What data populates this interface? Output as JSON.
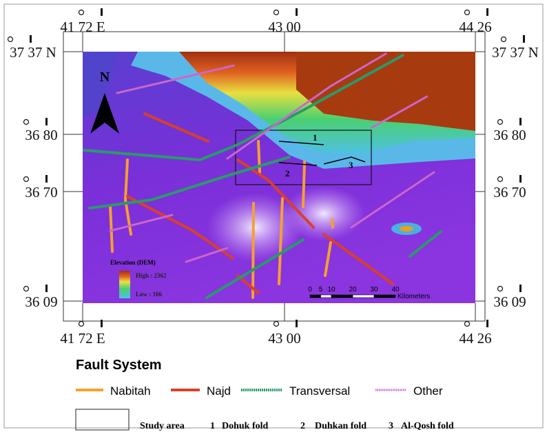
{
  "map": {
    "top_labels": [
      "41 72 E",
      "43 00",
      "44 26"
    ],
    "bottom_labels": [
      "41 72 E",
      "43 00",
      "44 26"
    ],
    "left_labels": [
      "37 37 N",
      "36 80",
      "36 70",
      "36 09"
    ],
    "right_labels": [
      "37 37 N",
      "36 80",
      "36 70",
      "36 09"
    ],
    "north": "N",
    "dem_legend": {
      "title": "Elevation (DEM)",
      "high": "High : 2362",
      "low": "Low : 166"
    },
    "scale": {
      "ticks": [
        0,
        5,
        10,
        20,
        30,
        40
      ],
      "unit": "Kilometers"
    },
    "fold_numbers": [
      "1",
      "2",
      "3"
    ]
  },
  "legend": {
    "title": "Fault System",
    "items": [
      {
        "label": "Nabitah",
        "color": "#f5a030"
      },
      {
        "label": "Najd",
        "color": "#d8402a"
      },
      {
        "label": "Transversal",
        "color": "#2a9a6a"
      },
      {
        "label": "Other",
        "color": "#cc66cc"
      }
    ],
    "study_area": "Study area",
    "folds": [
      {
        "number": "1",
        "name": "Dohuk fold"
      },
      {
        "number": "2",
        "name": "Duhkan fold"
      },
      {
        "number": "3",
        "name": "Al-Qosh fold"
      }
    ]
  }
}
